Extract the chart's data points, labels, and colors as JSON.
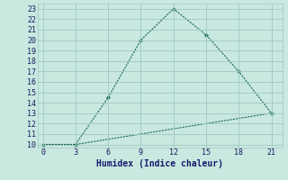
{
  "xlabel": "Humidex (Indice chaleur)",
  "line1_x": [
    0,
    3,
    6,
    9,
    12,
    15,
    18,
    21
  ],
  "line1_y": [
    10,
    10,
    14.5,
    20,
    23,
    20.5,
    17,
    13
  ],
  "line2_x": [
    0,
    3,
    21
  ],
  "line2_y": [
    10,
    10,
    13
  ],
  "line_color": "#1e6b5e",
  "bg_color": "#c8e8e0",
  "grid_color": "#a0c8c0",
  "xlim": [
    -0.5,
    22
  ],
  "ylim": [
    9.7,
    23.5
  ],
  "xticks": [
    0,
    3,
    6,
    9,
    12,
    15,
    18,
    21
  ],
  "yticks": [
    10,
    11,
    12,
    13,
    14,
    15,
    16,
    17,
    18,
    19,
    20,
    21,
    22,
    23
  ],
  "xlabel_fontsize": 7,
  "tick_fontsize": 6
}
